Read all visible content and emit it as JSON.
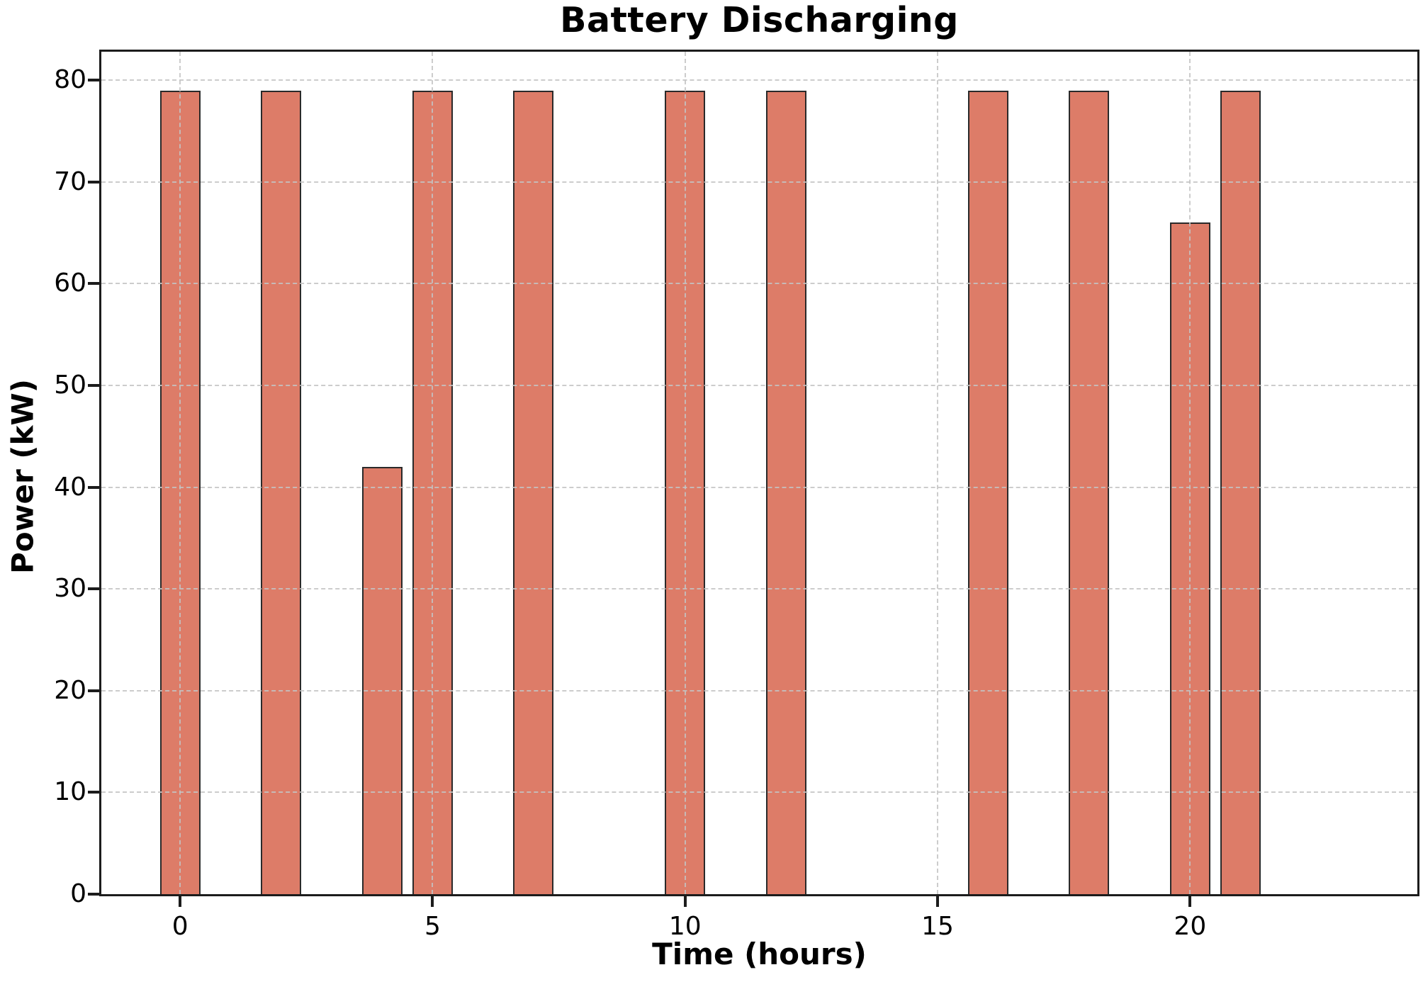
{
  "chart_data": {
    "type": "bar",
    "title": "Battery Discharging",
    "xlabel": "Time (hours)",
    "ylabel": "Power (kW)",
    "x": [
      0,
      2,
      4,
      5,
      7,
      10,
      12,
      16,
      18,
      20,
      21
    ],
    "values": [
      79,
      79,
      42,
      79,
      79,
      79,
      79,
      79,
      79,
      66,
      79
    ],
    "bar_width_hours": 0.8,
    "xlim": [
      -1.56,
      24.5
    ],
    "ylim": [
      0,
      82.8
    ],
    "xticks": [
      0,
      5,
      10,
      15,
      20
    ],
    "yticks": [
      0,
      10,
      20,
      30,
      40,
      50,
      60,
      70,
      80
    ],
    "grid": true,
    "legend": "none",
    "bar_color": "#dd7c68",
    "bar_edge_color": "#2a2a2a",
    "grid_color": "#c4c4c4",
    "spine_color": "#1c1c1c",
    "text_color": "#000000"
  }
}
